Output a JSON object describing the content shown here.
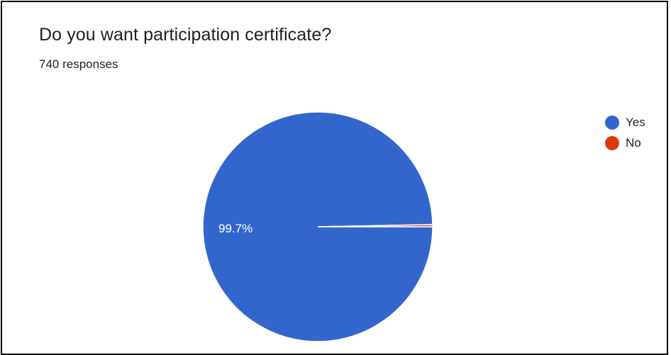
{
  "header": {
    "title": "Do you want participation certificate?",
    "responses": "740 responses"
  },
  "chart_data": {
    "type": "pie",
    "title": "Do you want participation certificate?",
    "subtitle": "740 responses",
    "categories": [
      "Yes",
      "No"
    ],
    "values": [
      99.7,
      0.3
    ],
    "colors": [
      "#3366cc",
      "#dc3912"
    ],
    "data_labels": [
      "99.7%",
      ""
    ],
    "legend": "right"
  }
}
